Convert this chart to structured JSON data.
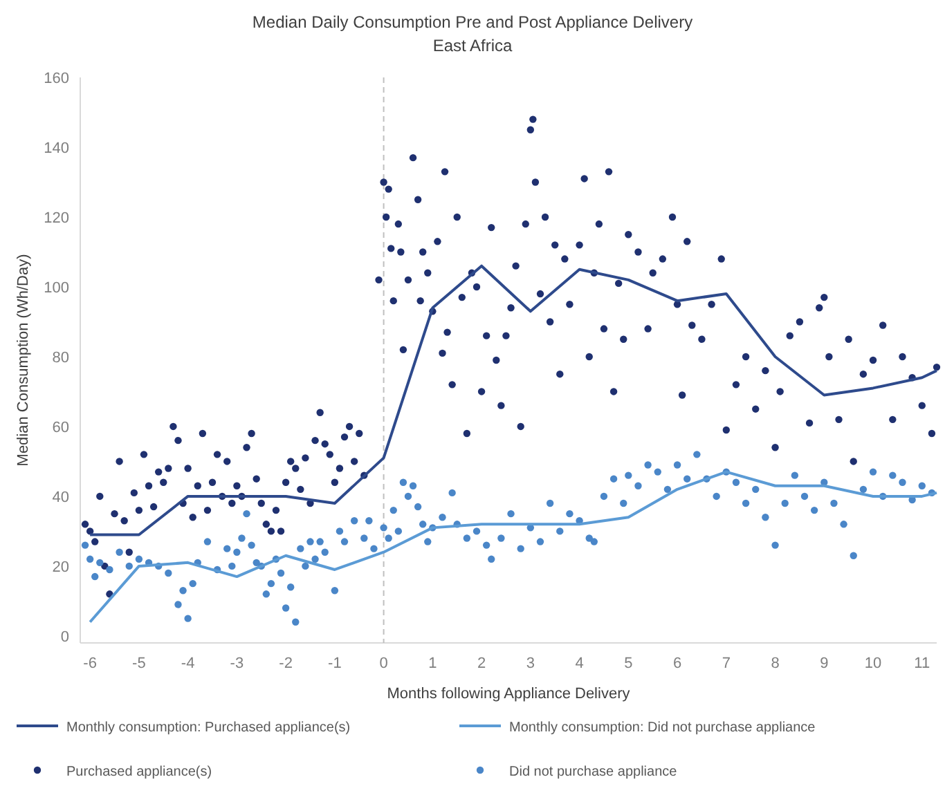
{
  "chart_data": {
    "type": "scatter",
    "title": "Median Daily Consumption Pre and Post Appliance Delivery",
    "subtitle": "East Africa",
    "xlabel": "Months following Appliance Delivery",
    "ylabel": "Median Consumption  (Wh/Day)",
    "xlim": [
      -6.2,
      11.3
    ],
    "xticks": [
      -6,
      -5,
      -4,
      -3,
      -2,
      -1,
      0,
      1,
      2,
      3,
      4,
      5,
      6,
      7,
      8,
      9,
      10,
      11
    ],
    "ylim": [
      -2,
      160
    ],
    "yticks": [
      0,
      20,
      40,
      60,
      80,
      100,
      120,
      140,
      160
    ],
    "grid": false,
    "legend": "bottom",
    "ref_lines": [
      {
        "axis": "x",
        "value": 0,
        "color": "#bfbfbf",
        "line_style": "dashed"
      }
    ],
    "series": [
      {
        "name": "Monthly consumption: Purchased appliance(s)",
        "type": "line",
        "marker": "none",
        "line_style": "solid",
        "color": "#2e4a8c",
        "x": [
          -6,
          -5,
          -4,
          -3,
          -2,
          -1,
          0,
          1,
          2,
          3,
          4,
          5,
          6,
          7,
          8,
          9,
          10,
          11,
          11.3
        ],
        "values": [
          29,
          29,
          40,
          40,
          40,
          38,
          51,
          94,
          106,
          93,
          105,
          102,
          96,
          98,
          80,
          69,
          71,
          74,
          76
        ]
      },
      {
        "name": "Monthly consumption: Did not purchase appliance",
        "type": "line",
        "marker": "none",
        "line_style": "solid",
        "color": "#5b9bd5",
        "x": [
          -6,
          -5,
          -4,
          -3,
          -2,
          -1,
          0,
          1,
          2,
          3,
          4,
          5,
          6,
          7,
          8,
          9,
          10,
          11,
          11.3
        ],
        "values": [
          4,
          20,
          21,
          17,
          23,
          19,
          24,
          31,
          32,
          32,
          32,
          34,
          42,
          47,
          43,
          43,
          40,
          40,
          41
        ]
      },
      {
        "name": "Purchased appliance(s)",
        "type": "scatter",
        "marker": "circle",
        "color": "#1f3070",
        "x": [
          -6.1,
          -6,
          -5.9,
          -5.8,
          -5.7,
          -5.6,
          -5.5,
          -5.4,
          -5.3,
          -5.2,
          -5.1,
          -5,
          -4.9,
          -4.8,
          -4.7,
          -4.6,
          -4.5,
          -4.4,
          -4.3,
          -4.2,
          -4.1,
          -4,
          -3.9,
          -3.8,
          -3.7,
          -3.6,
          -3.5,
          -3.4,
          -3.3,
          -3.2,
          -3.1,
          -3,
          -2.9,
          -2.8,
          -2.7,
          -2.6,
          -2.5,
          -2.4,
          -2.3,
          -2.2,
          -2.1,
          -2,
          -1.9,
          -1.8,
          -1.7,
          -1.6,
          -1.5,
          -1.4,
          -1.3,
          -1.2,
          -1.1,
          -1,
          -0.9,
          -0.8,
          -0.7,
          -0.6,
          -0.5,
          -0.4,
          -0.1,
          0,
          0.05,
          0.1,
          0.15,
          0.2,
          0.3,
          0.35,
          0.4,
          0.5,
          0.6,
          0.7,
          0.75,
          0.8,
          0.9,
          1,
          1.1,
          1.2,
          1.25,
          1.3,
          1.4,
          1.5,
          1.6,
          1.7,
          1.8,
          1.9,
          2,
          2.1,
          2.2,
          2.3,
          2.4,
          2.5,
          2.6,
          2.7,
          2.8,
          2.9,
          3,
          3.05,
          3.1,
          3.2,
          3.3,
          3.4,
          3.5,
          3.6,
          3.7,
          3.8,
          4,
          4.1,
          4.2,
          4.3,
          4.4,
          4.5,
          4.6,
          4.7,
          4.8,
          4.9,
          5,
          5.2,
          5.4,
          5.5,
          5.7,
          5.9,
          6,
          6.1,
          6.2,
          6.3,
          6.5,
          6.7,
          6.9,
          7,
          7.2,
          7.4,
          7.6,
          7.8,
          8,
          8.1,
          8.3,
          8.5,
          8.7,
          8.9,
          9,
          9.1,
          9.3,
          9.5,
          9.6,
          9.8,
          10,
          10.2,
          10.4,
          10.6,
          10.8,
          11,
          11.2,
          11.3
        ],
        "values": [
          32,
          30,
          27,
          40,
          20,
          12,
          35,
          50,
          33,
          24,
          41,
          36,
          52,
          43,
          37,
          47,
          44,
          48,
          60,
          56,
          38,
          48,
          34,
          43,
          58,
          36,
          44,
          52,
          40,
          50,
          38,
          43,
          40,
          54,
          58,
          45,
          38,
          32,
          30,
          36,
          30,
          44,
          50,
          48,
          42,
          51,
          38,
          56,
          64,
          55,
          52,
          44,
          48,
          57,
          60,
          50,
          58,
          46,
          102,
          130,
          120,
          128,
          111,
          96,
          118,
          110,
          82,
          102,
          137,
          125,
          96,
          110,
          104,
          93,
          113,
          81,
          133,
          87,
          72,
          120,
          97,
          58,
          104,
          100,
          70,
          86,
          117,
          79,
          66,
          86,
          94,
          106,
          60,
          118,
          145,
          148,
          130,
          98,
          120,
          90,
          112,
          75,
          108,
          95,
          112,
          131,
          80,
          104,
          118,
          88,
          133,
          70,
          101,
          85,
          115,
          110,
          88,
          104,
          108,
          120,
          95,
          69,
          113,
          89,
          85,
          95,
          108,
          59,
          72,
          80,
          65,
          76,
          54,
          70,
          86,
          90,
          61,
          94,
          97,
          80,
          62,
          85,
          50,
          75,
          79,
          89,
          62,
          80,
          74,
          66,
          58,
          77
        ]
      },
      {
        "name": "Did not purchase appliance",
        "type": "scatter",
        "marker": "circle",
        "color": "#4a86c8",
        "x": [
          -6.1,
          -6,
          -5.9,
          -5.8,
          -5.6,
          -5.4,
          -5.2,
          -5,
          -4.8,
          -4.6,
          -4.4,
          -4.2,
          -4.1,
          -4,
          -3.9,
          -3.8,
          -3.6,
          -3.4,
          -3.2,
          -3.1,
          -3,
          -2.9,
          -2.8,
          -2.7,
          -2.6,
          -2.5,
          -2.4,
          -2.3,
          -2.2,
          -2.1,
          -2,
          -1.9,
          -1.8,
          -1.7,
          -1.6,
          -1.5,
          -1.4,
          -1.3,
          -1.2,
          -1,
          -0.9,
          -0.8,
          -0.6,
          -0.4,
          -0.3,
          -0.2,
          0,
          0.1,
          0.2,
          0.3,
          0.4,
          0.5,
          0.6,
          0.7,
          0.8,
          0.9,
          1,
          1.2,
          1.4,
          1.5,
          1.7,
          1.9,
          2.1,
          2.2,
          2.4,
          2.6,
          2.8,
          3,
          3.2,
          3.4,
          3.6,
          3.8,
          4,
          4.2,
          4.3,
          4.5,
          4.7,
          4.9,
          5,
          5.2,
          5.4,
          5.6,
          5.8,
          6,
          6.2,
          6.4,
          6.6,
          6.8,
          7,
          7.2,
          7.4,
          7.6,
          7.8,
          8,
          8.2,
          8.4,
          8.6,
          8.8,
          9,
          9.2,
          9.4,
          9.6,
          9.8,
          10,
          10.2,
          10.4,
          10.6,
          10.8,
          11,
          11.2
        ],
        "values": [
          26,
          22,
          17,
          21,
          19,
          24,
          20,
          22,
          21,
          20,
          18,
          9,
          13,
          5,
          15,
          21,
          27,
          19,
          25,
          20,
          24,
          28,
          35,
          26,
          21,
          20,
          12,
          15,
          22,
          18,
          8,
          14,
          4,
          25,
          20,
          27,
          22,
          27,
          24,
          13,
          30,
          27,
          33,
          28,
          33,
          25,
          31,
          28,
          36,
          30,
          44,
          40,
          43,
          37,
          32,
          27,
          31,
          34,
          41,
          32,
          28,
          30,
          26,
          22,
          28,
          35,
          25,
          31,
          27,
          38,
          30,
          35,
          33,
          28,
          27,
          40,
          45,
          38,
          46,
          43,
          49,
          47,
          42,
          49,
          45,
          52,
          45,
          40,
          47,
          44,
          38,
          42,
          34,
          26,
          38,
          46,
          40,
          36,
          44,
          38,
          32,
          23,
          42,
          47,
          40,
          46,
          44,
          39,
          43,
          41
        ]
      }
    ]
  }
}
